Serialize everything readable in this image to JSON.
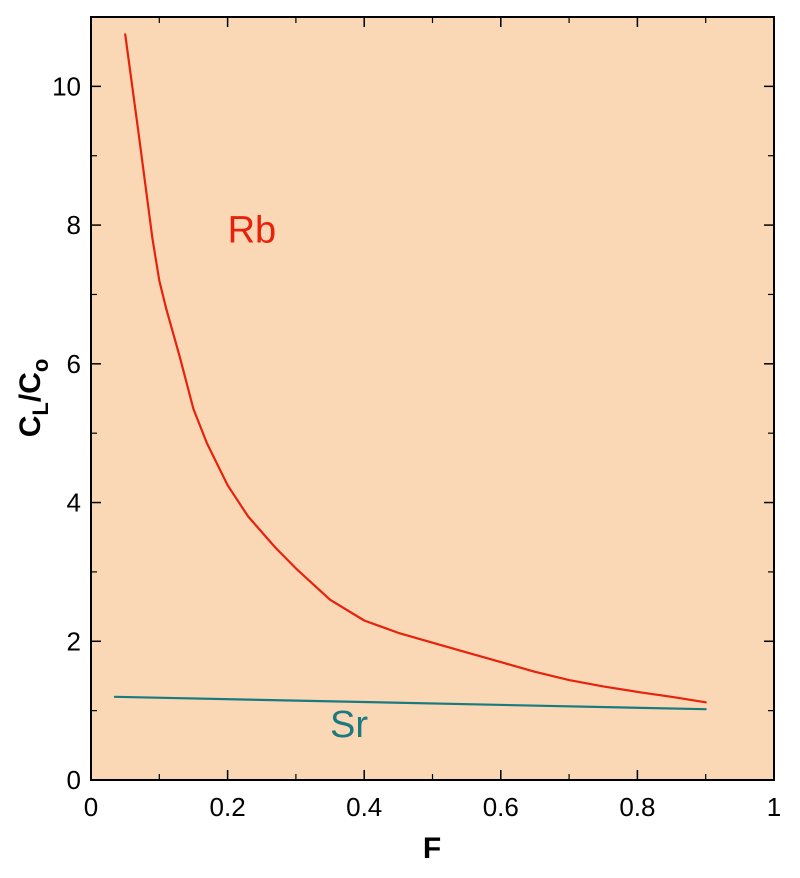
{
  "chart_data": {
    "type": "line",
    "title": "",
    "xlabel": "F",
    "ylabel_main": "C",
    "ylabel_sub1": "L",
    "ylabel_slash": "/C",
    "ylabel_sub2": "o",
    "xlim": [
      0,
      1
    ],
    "ylim": [
      0,
      11
    ],
    "x_ticks": [
      0,
      0.2,
      0.4,
      0.6,
      0.8,
      1
    ],
    "x_tick_labels": [
      "0",
      "0.2",
      "0.4",
      "0.6",
      "0.8",
      "1"
    ],
    "y_ticks": [
      0,
      2,
      4,
      6,
      8,
      10
    ],
    "y_tick_labels": [
      "0",
      "2",
      "4",
      "6",
      "8",
      "10"
    ],
    "grid": false,
    "background_color": "#fad8b5",
    "series": [
      {
        "name": "Rb",
        "color": "#e8210c",
        "x": [
          0.05,
          0.07,
          0.09,
          0.1,
          0.11,
          0.13,
          0.15,
          0.17,
          0.2,
          0.23,
          0.27,
          0.3,
          0.35,
          0.4,
          0.45,
          0.5,
          0.55,
          0.6,
          0.65,
          0.7,
          0.75,
          0.8,
          0.85,
          0.9
        ],
        "y": [
          10.75,
          9.3,
          7.8,
          7.2,
          6.8,
          6.1,
          5.35,
          4.85,
          4.25,
          3.8,
          3.35,
          3.05,
          2.6,
          2.3,
          2.12,
          1.98,
          1.84,
          1.7,
          1.56,
          1.44,
          1.35,
          1.27,
          1.2,
          1.12
        ]
      },
      {
        "name": "Sr",
        "color": "#1a7a80",
        "x": [
          0.035,
          0.9
        ],
        "y": [
          1.2,
          1.02
        ]
      }
    ],
    "annotations": [
      {
        "text": "Rb",
        "x": 0.2,
        "y": 7.75,
        "color": "#e8210c"
      },
      {
        "text": "Sr",
        "x": 0.35,
        "y": 0.62,
        "color": "#1a7a80"
      }
    ]
  }
}
